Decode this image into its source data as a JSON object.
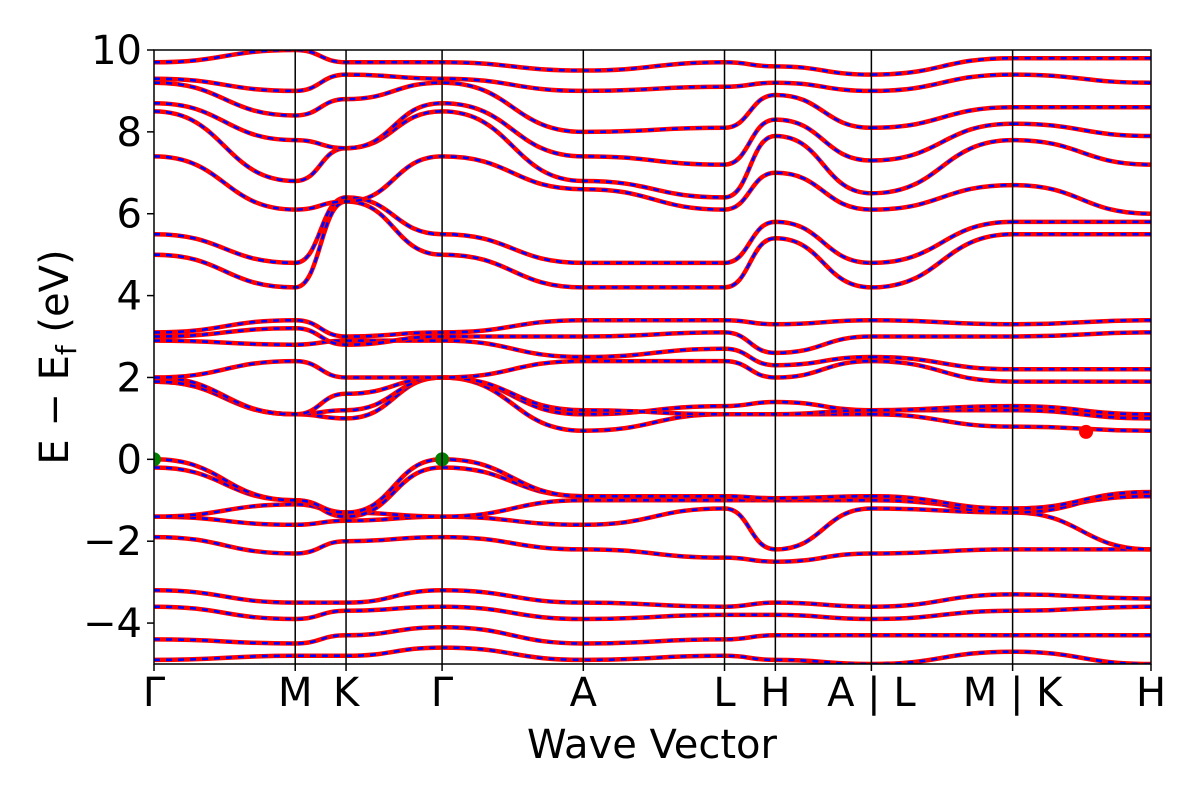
{
  "chart_data": {
    "type": "line",
    "title": "",
    "xlabel": "Wave Vector",
    "ylabel": "E − E_f (eV)",
    "ylabel_parts": {
      "main": "E − E",
      "sub": "f",
      "tail": " (eV)"
    },
    "ylim": [
      -5,
      10
    ],
    "yticks": [
      -4,
      -2,
      0,
      2,
      4,
      6,
      8,
      10
    ],
    "ytick_labels": [
      "−4",
      "−2",
      "0",
      "2",
      "4",
      "6",
      "8",
      "10"
    ],
    "xlim": [
      0,
      7.06
    ],
    "kpath_ticks": [
      {
        "label": "Γ",
        "x": 0.0
      },
      {
        "label": "M",
        "x": 1.0
      },
      {
        "label": "K",
        "x": 1.36
      },
      {
        "label": "Γ",
        "x": 2.04
      },
      {
        "label": "A",
        "x": 3.04
      },
      {
        "label": "L",
        "x": 4.04
      },
      {
        "label": "H",
        "x": 4.4
      },
      {
        "label": "A | L",
        "x": 5.08
      },
      {
        "label": "M | K",
        "x": 6.08
      },
      {
        "label": "H",
        "x": 7.06
      }
    ],
    "path_breaks": [
      5.08,
      6.08
    ],
    "series_styles": [
      {
        "role": "band",
        "color": "#ff0000",
        "dash": "solid"
      },
      {
        "role": "band-overlay",
        "color": "#0000ff",
        "dash": "dashed"
      }
    ],
    "band_energies": {
      "x": [
        0.0,
        1.0,
        1.36,
        2.04,
        3.04,
        4.04,
        4.4,
        5.08,
        6.08,
        7.06
      ],
      "bands": [
        [
          -4.9,
          -4.8,
          -4.8,
          -4.6,
          -4.9,
          -4.8,
          -4.9,
          -5.0,
          -4.7,
          -5.0
        ],
        [
          -4.4,
          -4.5,
          -4.3,
          -4.1,
          -4.5,
          -4.4,
          -4.3,
          -4.3,
          -4.3,
          -4.3
        ],
        [
          -3.6,
          -3.9,
          -3.7,
          -3.6,
          -3.9,
          -3.8,
          -3.8,
          -3.9,
          -3.7,
          -3.6
        ],
        [
          -3.2,
          -3.5,
          -3.5,
          -3.2,
          -3.5,
          -3.6,
          -3.5,
          -3.6,
          -3.3,
          -3.4
        ],
        [
          -1.9,
          -2.3,
          -2.0,
          -1.9,
          -2.2,
          -2.4,
          -2.5,
          -2.3,
          -2.2,
          -2.2
        ],
        [
          -1.4,
          -1.6,
          -1.5,
          -1.4,
          -1.6,
          -1.2,
          -2.2,
          -1.2,
          -1.3,
          -2.2
        ],
        [
          -1.4,
          -1.1,
          -1.3,
          -1.4,
          -1.0,
          -1.0,
          -1.0,
          -1.0,
          -1.2,
          -0.9
        ],
        [
          -0.2,
          -1.0,
          -1.4,
          -0.2,
          -0.9,
          -0.9,
          -1.0,
          -0.9,
          -1.3,
          -0.8
        ],
        [
          0.0,
          -1.0,
          -1.3,
          0.0,
          -0.9,
          -0.9,
          -0.95,
          -0.9,
          -1.2,
          -0.8
        ],
        [
          1.9,
          1.1,
          1.0,
          2.0,
          0.7,
          1.1,
          1.1,
          1.1,
          0.8,
          0.7
        ],
        [
          1.9,
          1.1,
          1.2,
          2.0,
          1.1,
          1.3,
          1.4,
          1.2,
          1.2,
          1.0
        ],
        [
          2.0,
          1.1,
          1.6,
          2.0,
          1.2,
          1.1,
          1.1,
          1.2,
          1.3,
          1.1
        ],
        [
          2.0,
          2.4,
          2.0,
          2.0,
          2.4,
          2.4,
          2.0,
          2.4,
          1.9,
          1.9
        ],
        [
          2.9,
          2.8,
          2.9,
          2.9,
          2.5,
          2.7,
          2.3,
          2.5,
          2.2,
          2.2
        ],
        [
          3.0,
          3.2,
          2.8,
          3.0,
          3.0,
          3.1,
          2.6,
          3.0,
          3.0,
          3.1
        ],
        [
          3.1,
          3.4,
          3.0,
          3.1,
          3.4,
          3.4,
          3.3,
          3.4,
          3.3,
          3.4
        ],
        [
          5.0,
          4.2,
          6.3,
          5.0,
          4.2,
          4.2,
          5.4,
          4.2,
          5.5,
          5.5
        ],
        [
          5.5,
          4.8,
          6.4,
          5.5,
          4.8,
          4.8,
          5.8,
          4.8,
          5.8,
          5.8
        ],
        [
          7.4,
          6.1,
          6.3,
          7.4,
          6.6,
          6.1,
          7.0,
          6.1,
          6.7,
          6.0
        ],
        [
          8.5,
          6.8,
          7.6,
          8.5,
          6.8,
          6.4,
          7.9,
          6.5,
          7.8,
          7.2
        ],
        [
          8.7,
          7.8,
          7.6,
          8.7,
          7.4,
          7.2,
          8.3,
          7.3,
          8.2,
          7.9
        ],
        [
          9.2,
          8.4,
          8.8,
          9.2,
          8.0,
          8.1,
          8.9,
          8.1,
          8.6,
          8.6
        ],
        [
          9.3,
          9.0,
          9.4,
          9.3,
          9.0,
          9.1,
          9.2,
          9.0,
          9.4,
          9.2
        ],
        [
          9.7,
          10.0,
          9.7,
          9.7,
          9.5,
          9.7,
          9.6,
          9.4,
          9.8,
          9.8
        ]
      ]
    },
    "markers": [
      {
        "x": 0.0,
        "y": 0.0,
        "color": "#008000"
      },
      {
        "x": 2.04,
        "y": 0.0,
        "color": "#008000"
      },
      {
        "x": 6.6,
        "y": 0.67,
        "color": "#ff0000"
      }
    ]
  }
}
